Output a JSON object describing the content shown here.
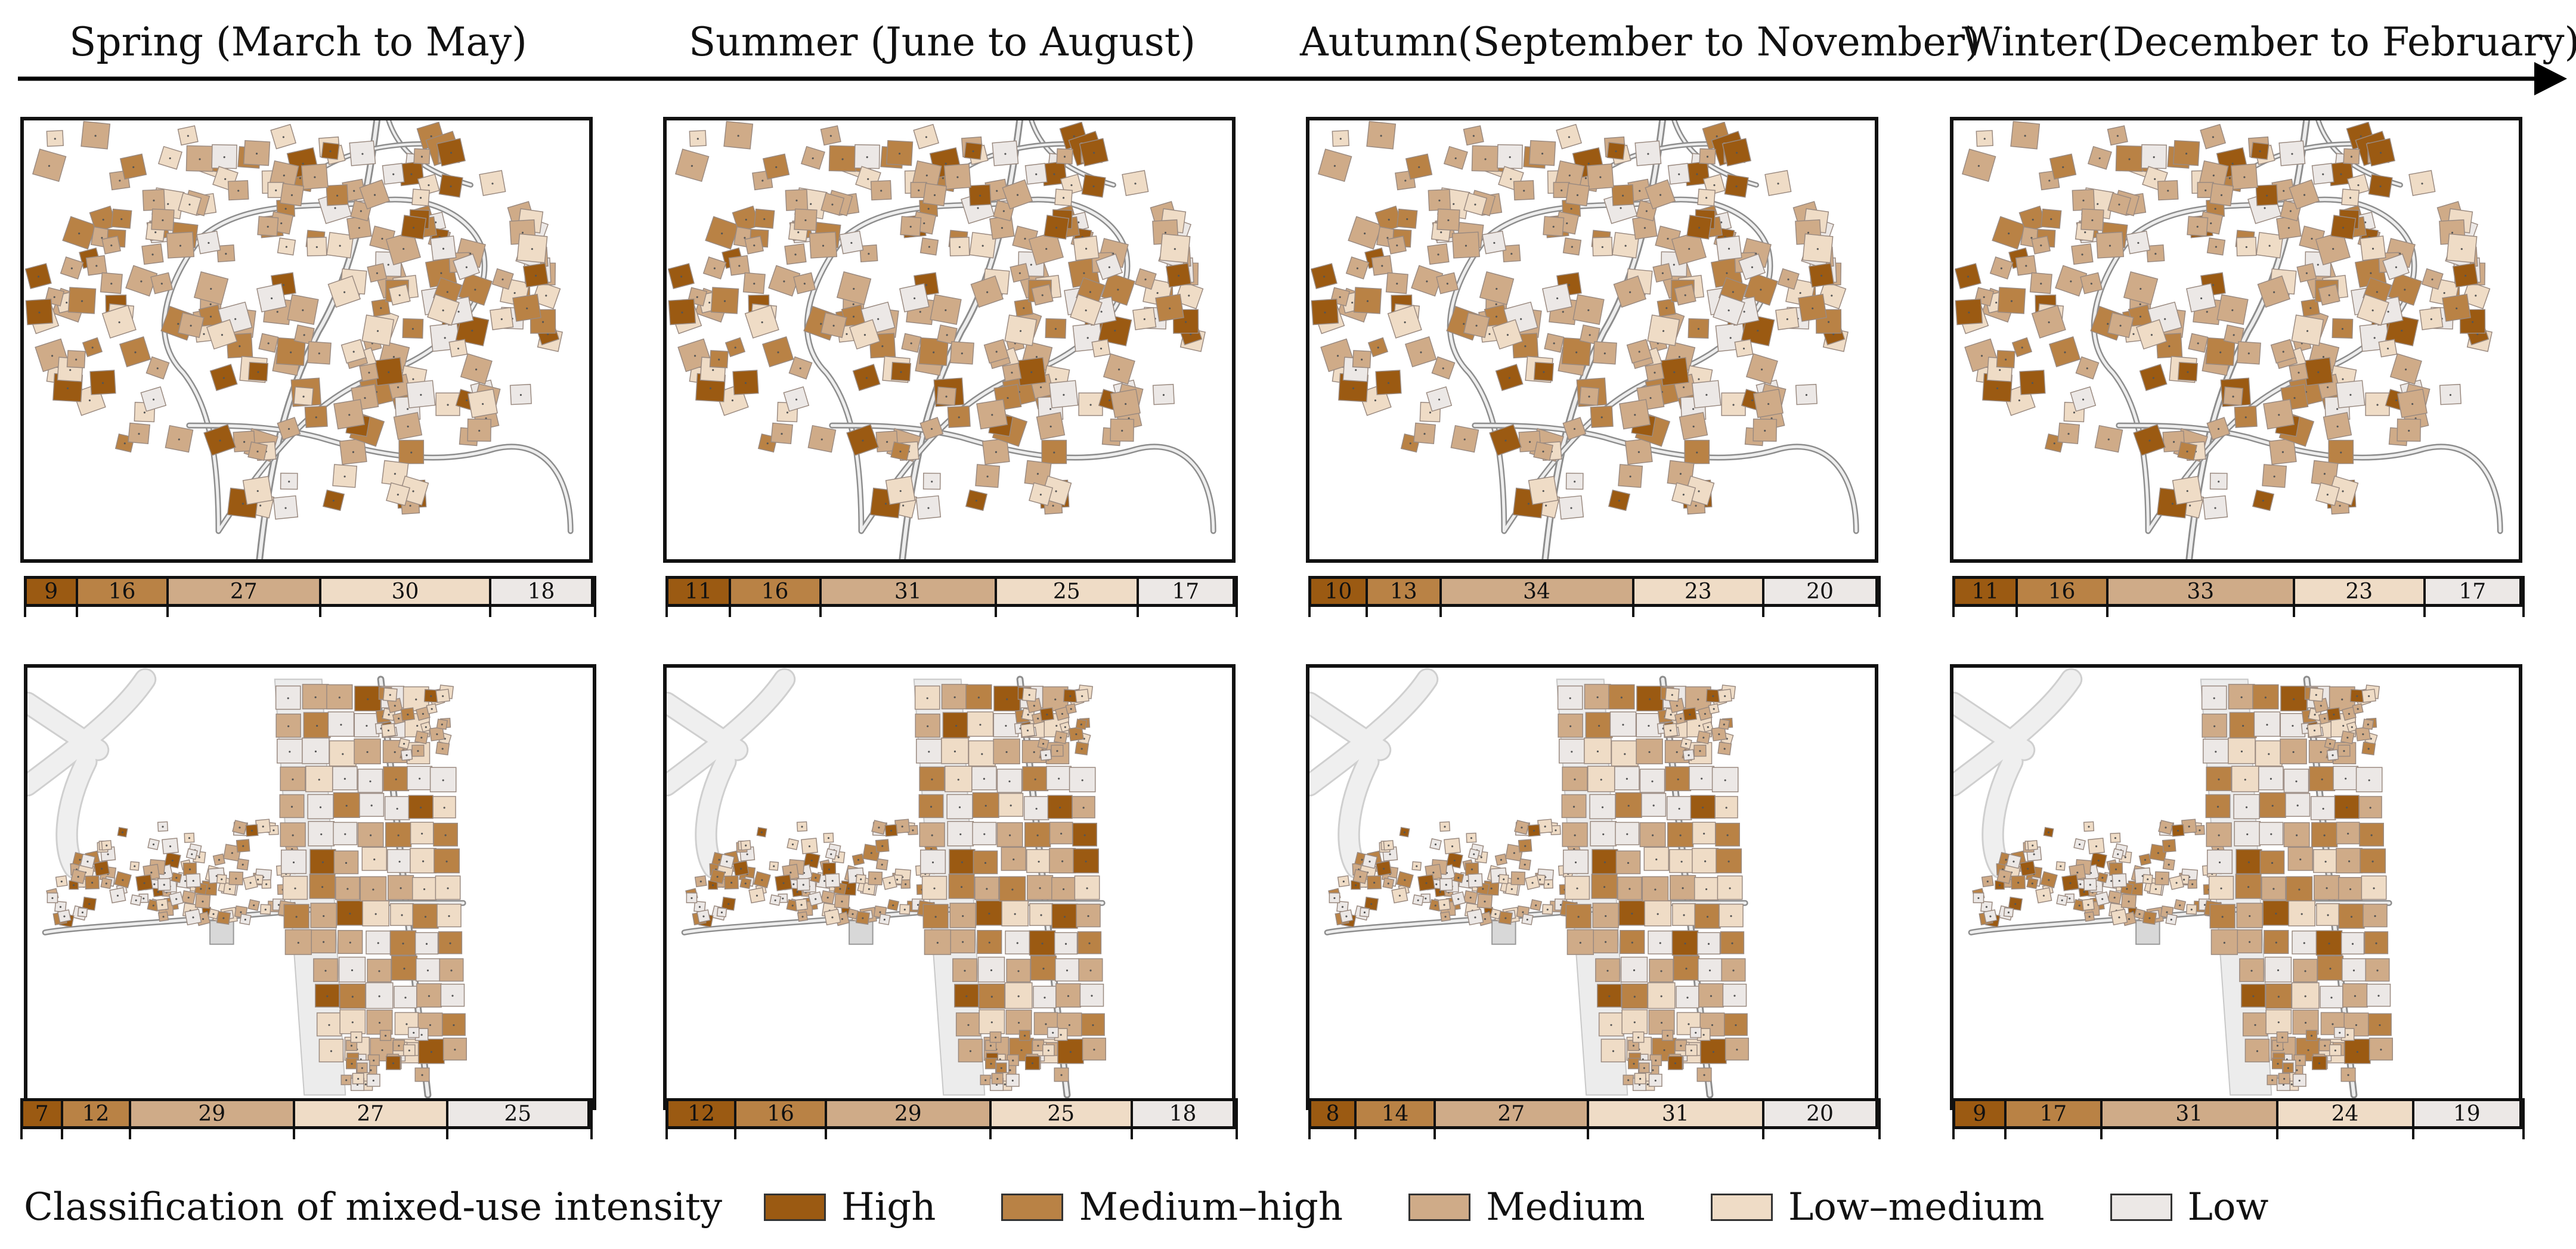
{
  "seasons": [
    {
      "label": "Spring (March to May)"
    },
    {
      "label": "Summer (June to August)"
    },
    {
      "label": "Autumn(September to November)"
    },
    {
      "label": "Winter(December to February)"
    }
  ],
  "classes": [
    {
      "name": "High",
      "color": "#9b5a12"
    },
    {
      "name": "Medium–high",
      "color": "#b98245"
    },
    {
      "name": "Medium",
      "color": "#cfab88"
    },
    {
      "name": "Low–medium",
      "color": "#efdcc6"
    },
    {
      "name": "Low",
      "color": "#ece8e6"
    }
  ],
  "legend": {
    "title": "Classification of mixed-use intensity"
  },
  "village1_distribution": [
    {
      "values": [
        9,
        16,
        27,
        30,
        18
      ],
      "labels": [
        "9",
        "16",
        "27",
        "30",
        "18"
      ]
    },
    {
      "values": [
        11,
        16,
        31,
        25,
        17
      ],
      "labels": [
        "11",
        "16",
        "31",
        "25",
        "17"
      ]
    },
    {
      "values": [
        10,
        13,
        34,
        23,
        20
      ],
      "labels": [
        "10",
        "13",
        "34",
        "23",
        "20"
      ]
    },
    {
      "values": [
        11,
        16,
        33,
        23,
        17
      ],
      "labels": [
        "11",
        "16",
        "33",
        "23",
        "17"
      ]
    }
  ],
  "village2_distribution": [
    {
      "values": [
        7,
        12,
        29,
        27,
        25
      ],
      "labels": [
        "7",
        "12",
        "29",
        "27",
        "25"
      ]
    },
    {
      "values": [
        12,
        16,
        29,
        25,
        18
      ],
      "labels": [
        "12",
        "16",
        "29",
        "25",
        "18"
      ]
    },
    {
      "values": [
        8,
        14,
        27,
        31,
        20
      ],
      "labels": [
        "8",
        "14",
        "27",
        "31",
        "20"
      ]
    },
    {
      "values": [
        9,
        17,
        31,
        24,
        19
      ],
      "labels": [
        "9",
        "17",
        "31",
        "24",
        "19"
      ]
    }
  ]
}
